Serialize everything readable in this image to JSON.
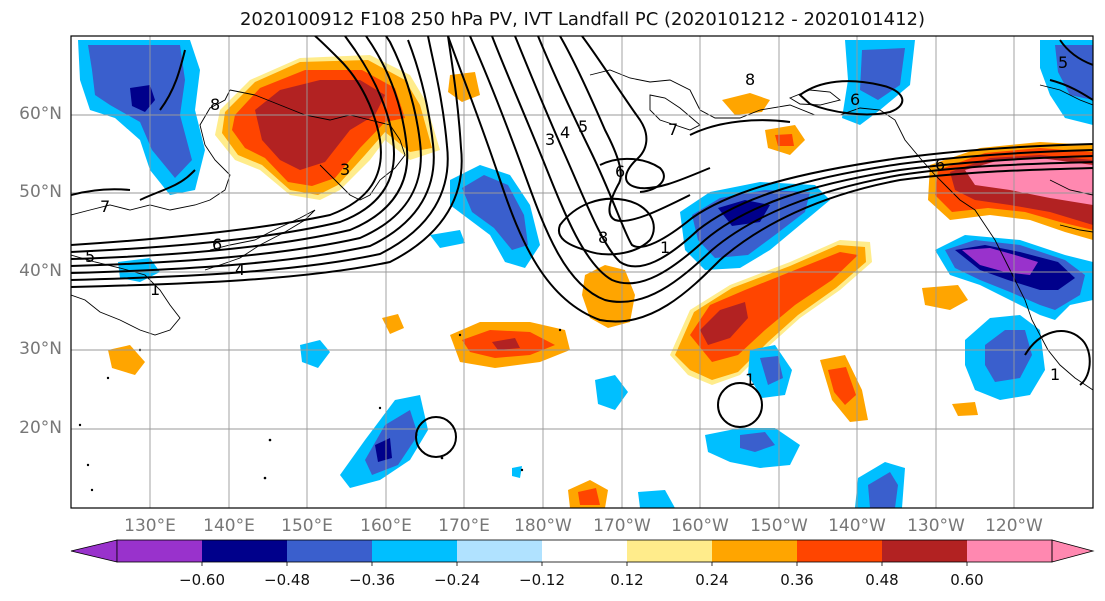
{
  "title": "2020100912 F108 250 hPa PV, IVT Landfall PC (2020101212 - 2020101412)",
  "lat_labels": [
    "60°N",
    "50°N",
    "40°N",
    "30°N",
    "20°N"
  ],
  "lon_labels": [
    "130°E",
    "140°E",
    "150°E",
    "160°E",
    "170°E",
    "180°W",
    "170°W",
    "160°W",
    "150°W",
    "140°W",
    "130°W",
    "120°W"
  ],
  "colorbar": {
    "ticks": [
      "−0.60",
      "−0.48",
      "−0.36",
      "−0.24",
      "−0.12",
      "0.12",
      "0.24",
      "0.36",
      "0.48",
      "0.60"
    ],
    "colors": [
      "#9932cc",
      "#00008b",
      "#3a5fcd",
      "#00bfff",
      "#b0e2ff",
      "#ffffff",
      "#ffec8b",
      "#ffa500",
      "#ff4500",
      "#b22222",
      "#ff88b0"
    ]
  },
  "contour_labels": [
    "8",
    "7",
    "5",
    "6",
    "4",
    "3",
    "1",
    "8",
    "6",
    "7",
    "3",
    "4",
    "5",
    "6",
    "8",
    "1",
    "5",
    "6",
    "1",
    "1"
  ]
}
